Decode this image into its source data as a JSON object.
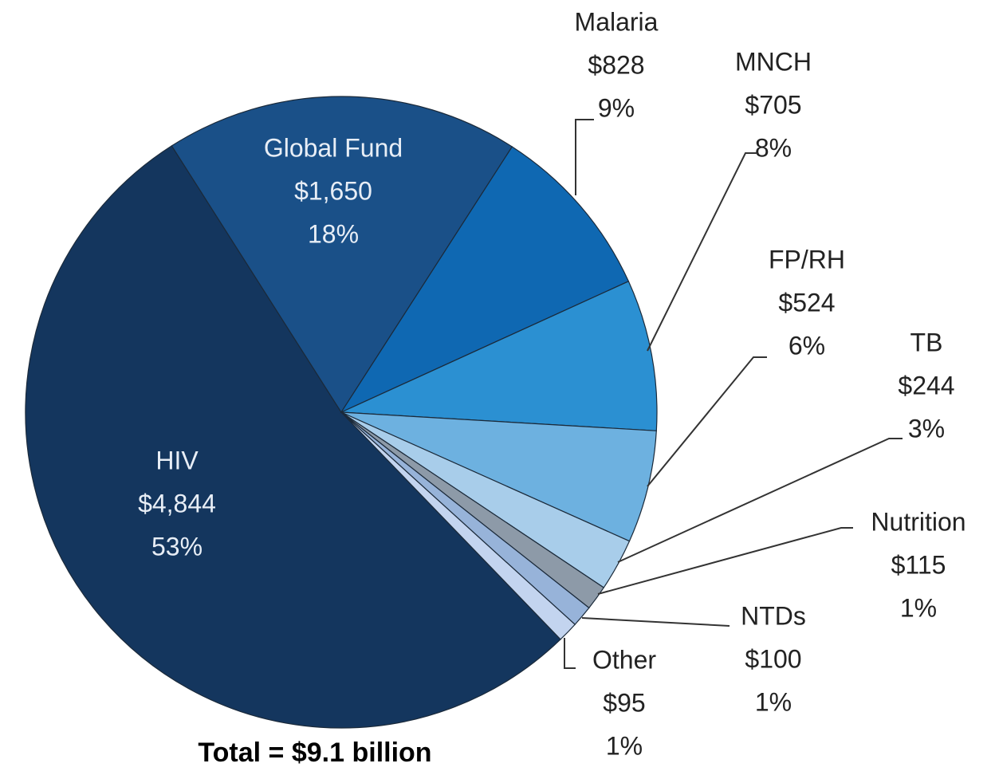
{
  "chart_data": {
    "type": "pie",
    "categories": [
      "HIV",
      "Global Fund",
      "Malaria",
      "MNCH",
      "FP/RH",
      "TB",
      "Nutrition",
      "NTDs",
      "Other"
    ],
    "values": [
      4844,
      1650,
      828,
      705,
      524,
      244,
      115,
      100,
      95
    ],
    "value_labels": [
      "$4,844",
      "$1,650",
      "$828",
      "$705",
      "$524",
      "$244",
      "$115",
      "$100",
      "$95"
    ],
    "shares": [
      53,
      18,
      9,
      8,
      6,
      3,
      1,
      1,
      1
    ],
    "share_labels": [
      "53%",
      "18%",
      "9%",
      "8%",
      "6%",
      "3%",
      "1%",
      "1%",
      "1%"
    ],
    "colors": [
      "#14365e",
      "#1a5088",
      "#0f68b2",
      "#2b90d2",
      "#6db1e0",
      "#a8cdea",
      "#8d9aa8",
      "#97b3d9",
      "#c3d4ef"
    ],
    "note": "Total = $9.1 billion"
  }
}
